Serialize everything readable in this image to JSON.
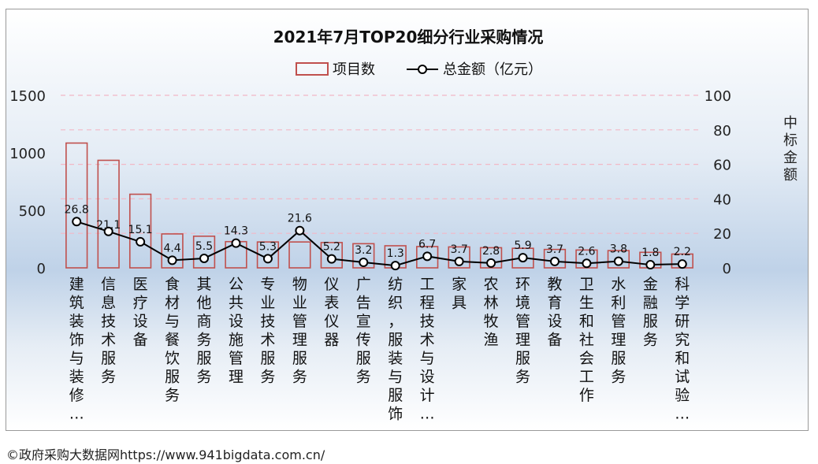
{
  "chart_data": {
    "type": "bar",
    "title": "2021年7月TOP20细分行业采购情况",
    "categories": [
      "建筑装饰与装修…",
      "信息技术服务",
      "医疗设备",
      "食材与餐饮服务",
      "其他商务服务",
      "公共设施管理",
      "专业技术服务",
      "物业管理服务",
      "仪表仪器",
      "广告宣传服务",
      "纺织，服装与服饰",
      "工程技术与设计…",
      "家具",
      "农林牧渔",
      "环境管理服务",
      "教育设备",
      "卫生和社会工作",
      "水利管理服务",
      "金融服务",
      "科学研究和试验…"
    ],
    "series": [
      {
        "name": "项目数",
        "kind": "bar",
        "axis": "left",
        "color": "#c0504d",
        "values": [
          1085,
          935,
          640,
          295,
          275,
          228,
          225,
          225,
          220,
          210,
          192,
          185,
          182,
          175,
          170,
          160,
          155,
          150,
          135,
          120
        ]
      },
      {
        "name": "总金额（亿元）",
        "kind": "line",
        "axis": "right",
        "color": "#000000",
        "values": [
          26.8,
          21.1,
          15.1,
          4.4,
          5.5,
          14.3,
          5.3,
          21.6,
          5.2,
          3.2,
          1.3,
          6.7,
          3.7,
          2.8,
          5.9,
          3.7,
          2.6,
          3.8,
          1.8,
          2.2
        ],
        "labels": [
          "26.8",
          "21.1",
          "15.1",
          "4.4",
          "5.5",
          "14.3",
          "5.3",
          "21.6",
          "5.2",
          "3.2",
          "1.3",
          "6.7",
          "3.7",
          "2.8",
          "5.9",
          "3.7",
          "2.6",
          "3.8",
          "1.8",
          "2.2"
        ]
      }
    ],
    "ylim": [
      0,
      1500
    ],
    "yticks": [
      "0",
      "500",
      "1000",
      "1500"
    ],
    "y2lim": [
      0,
      100
    ],
    "y2ticks": [
      "0",
      "20",
      "40",
      "60",
      "80",
      "100"
    ],
    "y2label": "中标金额",
    "ylabel": "",
    "xlabel": "",
    "legend": "top-center",
    "grid": "dashed"
  },
  "legend": {
    "bar_label": "项目数",
    "line_label": "总金额（亿元）"
  },
  "footer": {
    "text": "©政府采购大数据网https://www.941bigdata.com.cn/"
  }
}
